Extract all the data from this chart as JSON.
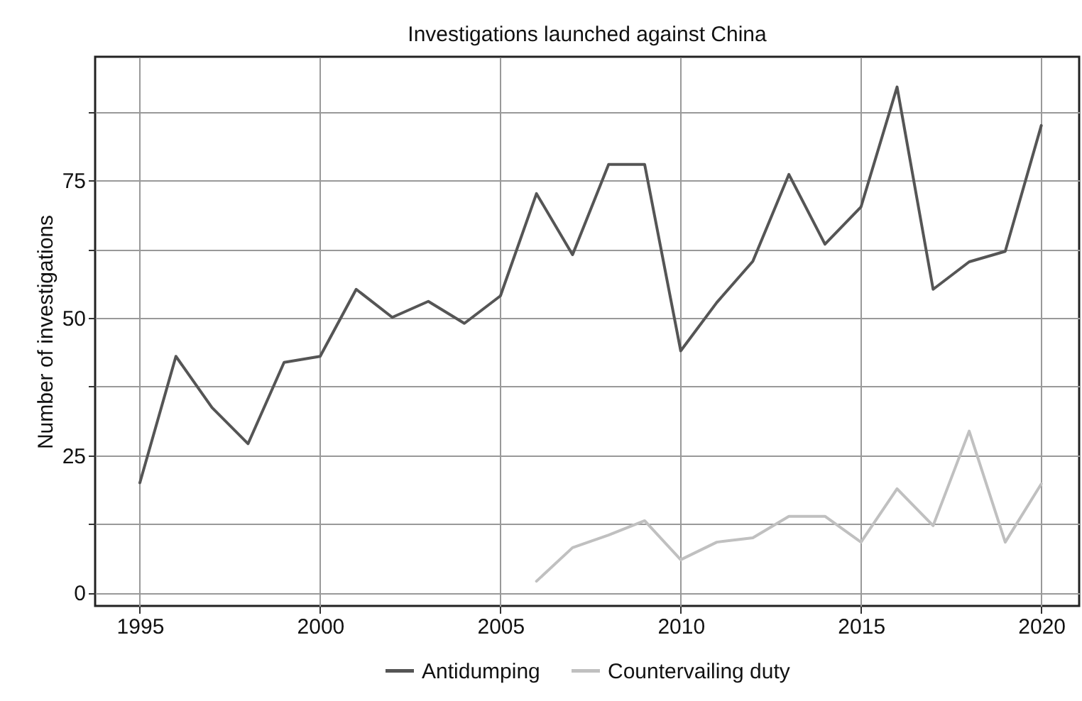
{
  "chart_data": {
    "type": "line",
    "title": "Investigations launched against China",
    "ylabel": "Number of investigations",
    "x": [
      1995,
      1996,
      1997,
      1998,
      1999,
      2000,
      2001,
      2002,
      2003,
      2004,
      2005,
      2006,
      2007,
      2008,
      2009,
      2010,
      2011,
      2012,
      2013,
      2014,
      2015,
      2016,
      2017,
      2018,
      2019,
      2020
    ],
    "series": [
      {
        "name": "Antidumping",
        "color": "#555555",
        "values": [
          20,
          43,
          33.7,
          27.1,
          41.9,
          43,
          55.2,
          50.1,
          53,
          49,
          54,
          72.6,
          61.5,
          77.9,
          77.9,
          44,
          52.8,
          60.3,
          76.1,
          63.4,
          70.2,
          92,
          55.2,
          60.2,
          62.1,
          85
        ]
      },
      {
        "name": "Countervailing duty",
        "color": "#c0c0c0",
        "x": [
          2006,
          2007,
          2008,
          2009,
          2010,
          2011,
          2012,
          2013,
          2014,
          2015,
          2016,
          2017,
          2018,
          2019,
          2020
        ],
        "values": [
          2.1,
          8.2,
          10.5,
          13.1,
          6,
          9.2,
          10,
          13.9,
          13.9,
          9.2,
          18.9,
          12.2,
          29.4,
          9.2,
          19.8
        ]
      }
    ],
    "xlim": [
      1993.76,
      2021.05
    ],
    "xticks": [
      1995,
      2000,
      2005,
      2010,
      2015,
      2020
    ],
    "ylim": [
      -2.4,
      97.5
    ],
    "yticks": [
      0,
      {
        "value": 12.5,
        "label": null
      },
      25,
      {
        "value": 37.5,
        "label": null
      },
      50,
      {
        "value": 62.5,
        "label": null
      },
      75,
      {
        "value": 87.5,
        "label": null
      }
    ],
    "grid": true,
    "legend": "bottom",
    "marker": "none",
    "line_style": "solid"
  }
}
